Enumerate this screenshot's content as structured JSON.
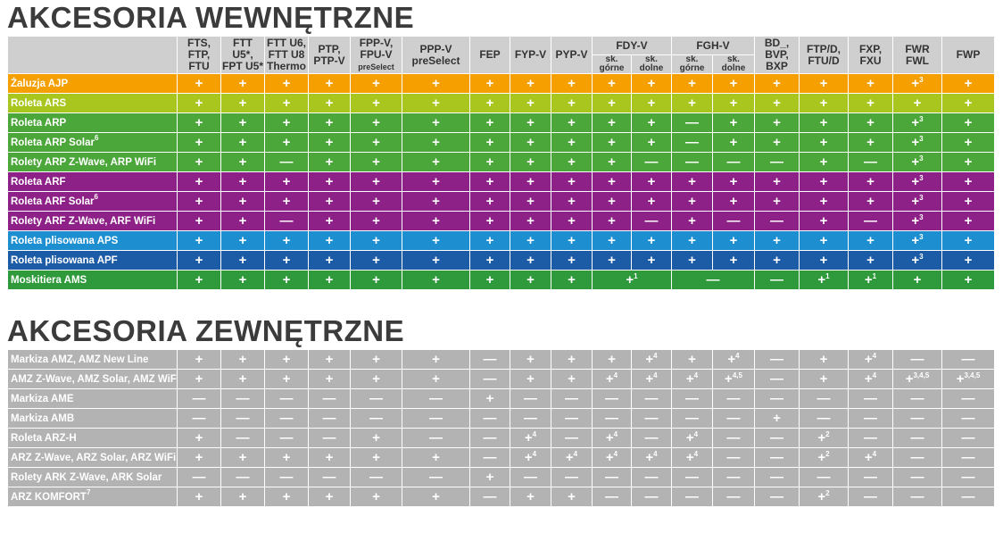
{
  "sections": [
    {
      "title": "AKCESORIA WEWNĘTRZNE",
      "header": [
        {
          "lines": [
            "FTS,",
            "FTP,",
            "FTU"
          ]
        },
        {
          "lines": [
            "FTT",
            "U5*,",
            "FPT U5*"
          ]
        },
        {
          "lines": [
            "FTT U6,",
            "FTT U8",
            "Thermo"
          ]
        },
        {
          "lines": [
            "PTP,",
            "PTP-V"
          ]
        },
        {
          "lines": [
            "FPP-V,",
            "FPU-V",
            "preSelect"
          ]
        },
        {
          "lines": [
            "PPP-V",
            "preSelect"
          ]
        },
        {
          "lines": [
            "FEP"
          ]
        },
        {
          "lines": [
            "FYP-V"
          ]
        },
        {
          "lines": [
            "PYP-V"
          ]
        },
        {
          "group": "FDY-V",
          "subs": [
            [
              "sk.",
              "górne"
            ],
            [
              "sk.",
              "dolne"
            ]
          ]
        },
        {
          "group": "FGH-V",
          "subs": [
            [
              "sk.",
              "górne"
            ],
            [
              "sk.",
              "dolne"
            ]
          ]
        },
        {
          "lines": [
            "BD_,",
            "BVP,",
            "BXP"
          ]
        },
        {
          "lines": [
            "FTP/D,",
            "FTU/D"
          ]
        },
        {
          "lines": [
            "FXP,",
            "FXU"
          ]
        },
        {
          "lines": [
            "FWR",
            "FWL"
          ]
        },
        {
          "lines": [
            "FWP"
          ]
        }
      ],
      "rows": [
        {
          "label": {
            "text": "Żaluzja AJP"
          },
          "color": "#f5a000",
          "cells": [
            "+",
            "+",
            "+",
            "+",
            "+",
            "+",
            "+",
            "+",
            "+",
            "+",
            "+",
            "+",
            "+",
            "+",
            "+",
            "+",
            {
              "text": "+",
              "sup": "3"
            },
            "+"
          ]
        },
        {
          "label": {
            "text": "Roleta ARS"
          },
          "color": "#a9c61f",
          "cells": [
            "+",
            "+",
            "+",
            "+",
            "+",
            "+",
            "+",
            "+",
            "+",
            "+",
            "+",
            "+",
            "+",
            "+",
            "+",
            "+",
            "+",
            "+"
          ]
        },
        {
          "label": {
            "text": "Roleta ARP"
          },
          "color": "#4ca73a",
          "cells": [
            "+",
            "+",
            "+",
            "+",
            "+",
            "+",
            "+",
            "+",
            "+",
            "+",
            "+",
            "—",
            "+",
            "+",
            "+",
            "+",
            {
              "text": "+",
              "sup": "3"
            },
            "+"
          ]
        },
        {
          "label": {
            "text": "Roleta ARP Solar",
            "sup": "6"
          },
          "color": "#4ca73a",
          "cells": [
            "+",
            "+",
            "+",
            "+",
            "+",
            "+",
            "+",
            "+",
            "+",
            "+",
            "+",
            "—",
            "+",
            "+",
            "+",
            "+",
            {
              "text": "+",
              "sup": "3"
            },
            "+"
          ]
        },
        {
          "label": {
            "text": "Rolety ARP Z-Wave, ARP WiFi"
          },
          "color": "#4ca73a",
          "cells": [
            "+",
            "+",
            "—",
            "+",
            "+",
            "+",
            "+",
            "+",
            "+",
            "+",
            "—",
            "—",
            "—",
            "—",
            "+",
            "—",
            {
              "text": "+",
              "sup": "3"
            },
            "+"
          ]
        },
        {
          "label": {
            "text": "Roleta ARF"
          },
          "color": "#8e2188",
          "cells": [
            "+",
            "+",
            "+",
            "+",
            "+",
            "+",
            "+",
            "+",
            "+",
            "+",
            "+",
            "+",
            "+",
            "+",
            "+",
            "+",
            {
              "text": "+",
              "sup": "3"
            },
            "+"
          ]
        },
        {
          "label": {
            "text": "Roleta ARF Solar",
            "sup": "6"
          },
          "color": "#8e2188",
          "cells": [
            "+",
            "+",
            "+",
            "+",
            "+",
            "+",
            "+",
            "+",
            "+",
            "+",
            "+",
            "+",
            "+",
            "+",
            "+",
            "+",
            {
              "text": "+",
              "sup": "3"
            },
            "+"
          ]
        },
        {
          "label": {
            "text": "Rolety ARF Z-Wave, ARF WiFi"
          },
          "color": "#8e2188",
          "cells": [
            "+",
            "+",
            "—",
            "+",
            "+",
            "+",
            "+",
            "+",
            "+",
            "+",
            "—",
            "+",
            "—",
            "—",
            "+",
            "—",
            {
              "text": "+",
              "sup": "3"
            },
            "+"
          ]
        },
        {
          "label": {
            "text": "Roleta plisowana APS"
          },
          "color": "#1d8fd1",
          "cells": [
            "+",
            "+",
            "+",
            "+",
            "+",
            "+",
            "+",
            "+",
            "+",
            "+",
            "+",
            "+",
            "+",
            "+",
            "+",
            "+",
            {
              "text": "+",
              "sup": "3"
            },
            "+"
          ]
        },
        {
          "label": {
            "text": "Roleta plisowana APF"
          },
          "color": "#1c5ba6",
          "cells": [
            "+",
            "+",
            "+",
            "+",
            "+",
            "+",
            "+",
            "+",
            "+",
            "+",
            "+",
            "+",
            "+",
            "+",
            "+",
            "+",
            {
              "text": "+",
              "sup": "3"
            },
            "+"
          ]
        },
        {
          "label": {
            "text": "Moskitiera AMS"
          },
          "color": "#2f9a3b",
          "cells": [
            "+",
            "+",
            "+",
            "+",
            "+",
            "+",
            "+",
            "+",
            "+",
            {
              "text": "+",
              "sup": "1"
            },
            null,
            "—",
            null,
            "—",
            {
              "text": "+",
              "sup": "1"
            },
            {
              "text": "+",
              "sup": "1"
            },
            "+",
            "+"
          ]
        }
      ]
    },
    {
      "title": "AKCESORIA ZEWNĘTRZNE",
      "color": "#b3b3b3",
      "rows": [
        {
          "label": {
            "text": "Markiza AMZ, AMZ New Line"
          },
          "cells": [
            "+",
            "+",
            "+",
            "+",
            "+",
            "+",
            "—",
            "+",
            "+",
            "+",
            {
              "text": "+",
              "sup": "4"
            },
            "+",
            {
              "text": "+",
              "sup": "4"
            },
            "—",
            "+",
            {
              "text": "+",
              "sup": "4"
            },
            "—",
            "—"
          ]
        },
        {
          "label": {
            "text": "AMZ Z-Wave, AMZ Solar, AMZ WiFi"
          },
          "cells": [
            "+",
            "+",
            "+",
            "+",
            "+",
            "+",
            "—",
            "+",
            "+",
            {
              "text": "+",
              "sup": "4"
            },
            {
              "text": "+",
              "sup": "4"
            },
            {
              "text": "+",
              "sup": "4"
            },
            {
              "text": "+",
              "sup": "4,5"
            },
            "—",
            "+",
            {
              "text": "+",
              "sup": "4"
            },
            {
              "text": "+",
              "sup": "3,4,5"
            },
            {
              "text": "+",
              "sup": "3,4,5"
            }
          ]
        },
        {
          "label": {
            "text": "Markiza AME"
          },
          "cells": [
            "—",
            "—",
            "—",
            "—",
            "—",
            "—",
            "+",
            "—",
            "—",
            "—",
            "—",
            "—",
            "—",
            "—",
            "—",
            "—",
            "—",
            "—"
          ]
        },
        {
          "label": {
            "text": "Markiza AMB"
          },
          "cells": [
            "—",
            "—",
            "—",
            "—",
            "—",
            "—",
            "—",
            "—",
            "—",
            "—",
            "—",
            "—",
            "—",
            "+",
            "—",
            "—",
            "—",
            "—"
          ]
        },
        {
          "label": {
            "text": "Roleta ARZ-H"
          },
          "cells": [
            "+",
            "—",
            "—",
            "—",
            "+",
            "—",
            "—",
            {
              "text": "+",
              "sup": "4"
            },
            "—",
            {
              "text": "+",
              "sup": "4"
            },
            "—",
            {
              "text": "+",
              "sup": "4"
            },
            "—",
            "—",
            {
              "text": "+",
              "sup": "2"
            },
            "—",
            "—",
            "—"
          ]
        },
        {
          "label": {
            "text": "ARZ Z-Wave, ARZ Solar, ARZ WiFi"
          },
          "cells": [
            "+",
            "+",
            "+",
            "+",
            "+",
            "+",
            "—",
            {
              "text": "+",
              "sup": "4"
            },
            {
              "text": "+",
              "sup": "4"
            },
            {
              "text": "+",
              "sup": "4"
            },
            {
              "text": "+",
              "sup": "4"
            },
            {
              "text": "+",
              "sup": "4"
            },
            "—",
            "—",
            {
              "text": "+",
              "sup": "2"
            },
            {
              "text": "+",
              "sup": "4"
            },
            "—",
            "—"
          ]
        },
        {
          "label": {
            "text": "Rolety ARK Z-Wave, ARK Solar"
          },
          "cells": [
            "—",
            "—",
            "—",
            "—",
            "—",
            "—",
            "+",
            "—",
            "—",
            "—",
            "—",
            "—",
            "—",
            "—",
            "—",
            "—",
            "—",
            "—"
          ]
        },
        {
          "label": {
            "text": "ARZ KOMFORT",
            "sup": "7"
          },
          "cells": [
            "+",
            "+",
            "+",
            "+",
            "+",
            "+",
            "—",
            "+",
            "+",
            "—",
            "—",
            "—",
            "—",
            "—",
            {
              "text": "+",
              "sup": "2"
            },
            "—",
            "—",
            "—"
          ]
        }
      ]
    }
  ]
}
